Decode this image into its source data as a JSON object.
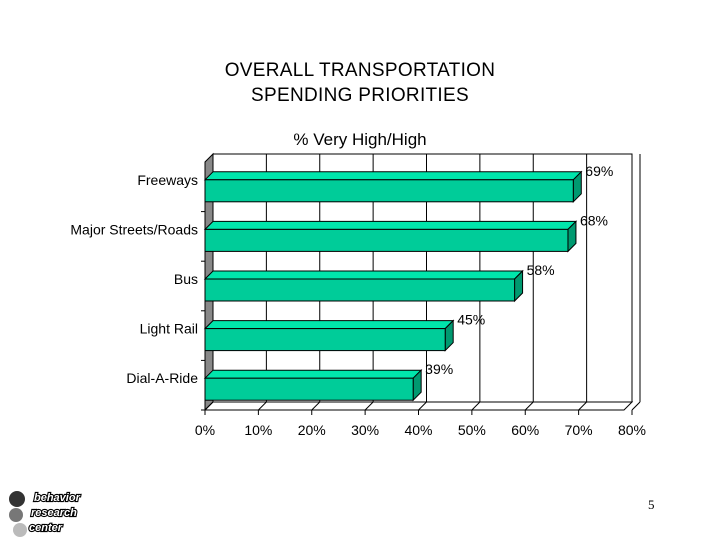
{
  "slide": {
    "title_line1": "OVERALL TRANSPORTATION",
    "title_line2": "SPENDING PRIORITIES",
    "subtitle": "% Very High/High",
    "page_number": "5",
    "logo_text": [
      "behavior",
      "research",
      "center"
    ]
  },
  "chart_data": {
    "type": "bar",
    "orientation": "horizontal",
    "title": "OVERALL TRANSPORTATION SPENDING PRIORITIES",
    "subtitle": "% Very High/High",
    "categories": [
      "Freeways",
      "Major Streets/Roads",
      "Bus",
      "Light Rail",
      "Dial-A-Ride"
    ],
    "values": [
      69,
      68,
      58,
      45,
      39
    ],
    "value_labels": [
      "69%",
      "68%",
      "58%",
      "45%",
      "39%"
    ],
    "xlim": [
      0,
      80
    ],
    "x_ticks": [
      "0%",
      "10%",
      "20%",
      "30%",
      "40%",
      "50%",
      "60%",
      "70%",
      "80%"
    ],
    "grid": "vertical",
    "bar_color": "#00cc99",
    "style": "3d"
  }
}
